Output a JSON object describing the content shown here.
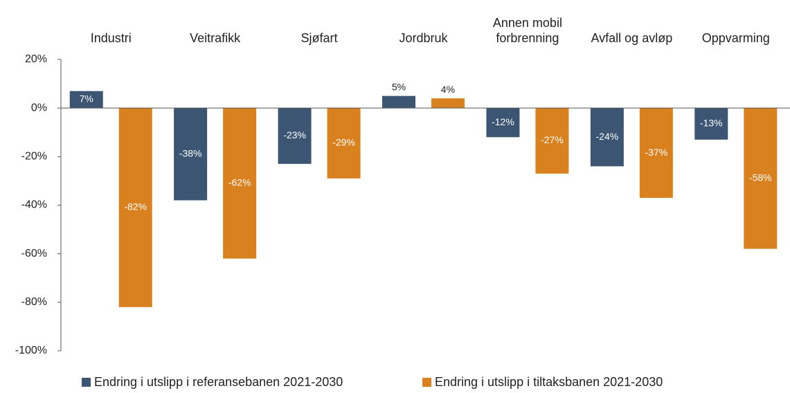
{
  "chart_data": {
    "type": "bar",
    "categories": [
      "Industri",
      "Veitrafikk",
      "Sjøfart",
      "Jordbruk",
      "Annen mobil forbrenning",
      "Avfall og avløp",
      "Oppvarming"
    ],
    "series": [
      {
        "name": "Endring i utslipp i referansebanen 2021-2030",
        "color": "#3b5573",
        "values": [
          7,
          -38,
          -23,
          5,
          -12,
          -24,
          -13
        ],
        "value_labels": [
          "7%",
          "-38%",
          "-23%",
          "5%",
          "-12%",
          "-24%",
          "-13%"
        ]
      },
      {
        "name": "Endring i utslipp i tiltaksbanen 2021-2030",
        "color": "#d9811f",
        "values": [
          -82,
          -62,
          -29,
          4,
          -27,
          -37,
          -58
        ],
        "value_labels": [
          "-82%",
          "-62%",
          "-29%",
          "4%",
          "-27%",
          "-37%",
          "-58%"
        ]
      }
    ],
    "ylim": [
      -100,
      20
    ],
    "yticks": [
      {
        "value": 20,
        "label": "20%"
      },
      {
        "value": 0,
        "label": "0%"
      },
      {
        "value": -20,
        "label": "-20%"
      },
      {
        "value": -40,
        "label": "-40%"
      },
      {
        "value": -60,
        "label": "-60%"
      },
      {
        "value": -80,
        "label": "-80%"
      },
      {
        "value": -100,
        "label": "-100%"
      }
    ],
    "legend": "bottom"
  }
}
